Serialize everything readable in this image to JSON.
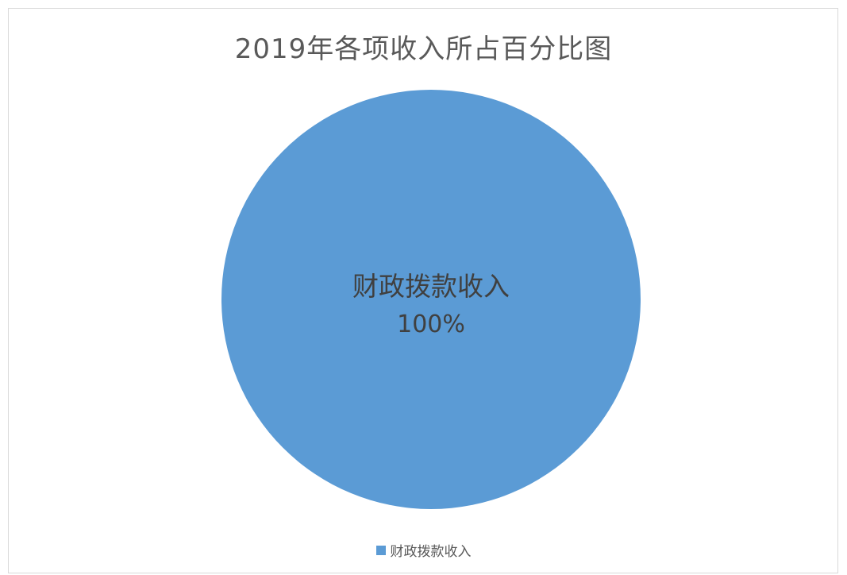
{
  "chart_data": {
    "type": "pie",
    "title": "2019年各项收入所占百分比图",
    "categories": [
      "财政拨款收入"
    ],
    "values": [
      100
    ],
    "labels": [
      "100%"
    ],
    "colors": [
      "#5b9bd5"
    ],
    "legend": "bottom",
    "data_label_color": "#404040"
  }
}
